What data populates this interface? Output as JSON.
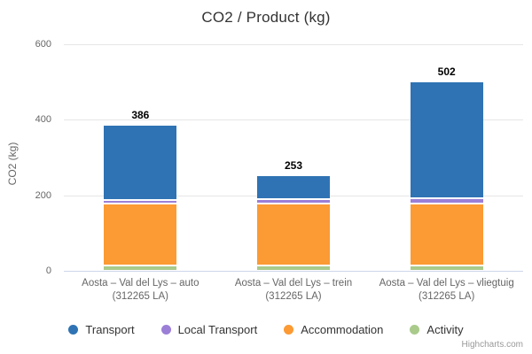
{
  "header": {
    "title": "CO2 / Product (kg)"
  },
  "chart_data": {
    "type": "bar",
    "stacked": true,
    "title": "CO2 / Product (kg)",
    "ylabel": "CO2 (kg)",
    "ylim": [
      0,
      600
    ],
    "yticks": [
      0,
      200,
      400,
      600
    ],
    "grid": true,
    "legend_position": "bottom",
    "categories": [
      {
        "line1": "Aosta – Val del Lys – auto",
        "line2": "(312265 LA)"
      },
      {
        "line1": "Aosta – Val del Lys – trein",
        "line2": "(312265 LA)"
      },
      {
        "line1": "Aosta – Val del Lys – vliegtuig",
        "line2": "(312265 LA)"
      }
    ],
    "series": [
      {
        "name": "Transport",
        "color": "#2f73b4",
        "values": [
          199,
          63,
          309
        ]
      },
      {
        "name": "Local Transport",
        "color": "#9b7fd7",
        "values": [
          9,
          12,
          15
        ]
      },
      {
        "name": "Accommodation",
        "color": "#fc9a33",
        "values": [
          164,
          164,
          164
        ]
      },
      {
        "name": "Activity",
        "color": "#a9ca8b",
        "values": [
          14,
          14,
          14
        ]
      }
    ],
    "stack_totals": [
      386,
      253,
      502
    ],
    "colors": {
      "grid": "#e6e6e6",
      "axis_line": "#ccd6eb",
      "tick_text": "#666666",
      "title_text": "#333333",
      "total_text": "#000000"
    }
  },
  "credits": {
    "label": "Highcharts.com"
  }
}
